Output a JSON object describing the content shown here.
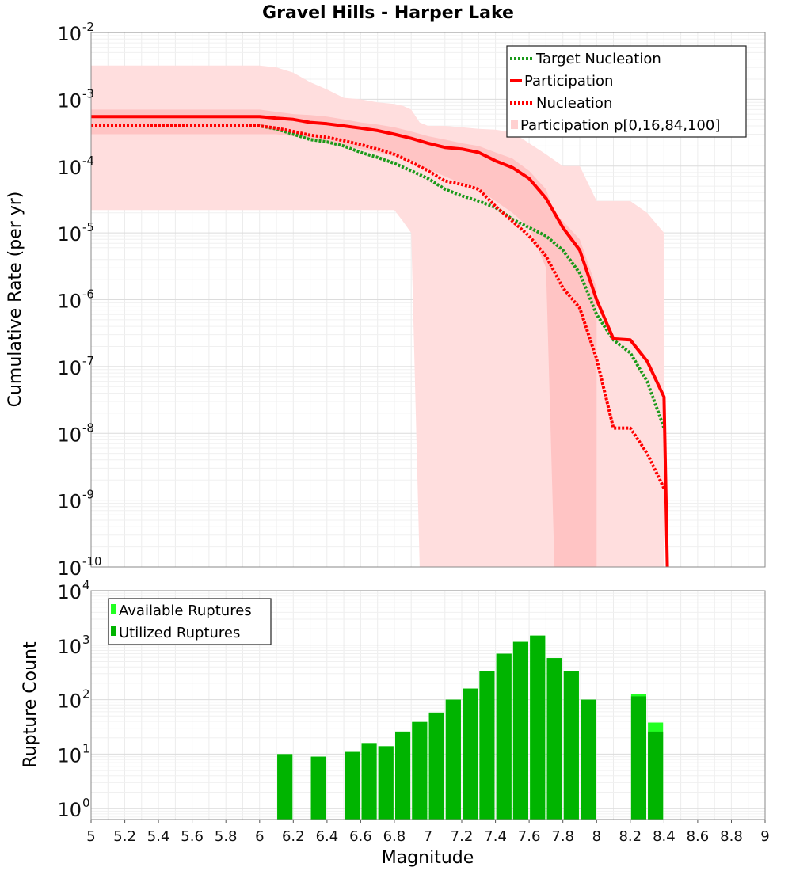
{
  "chart_data": [
    {
      "type": "line",
      "title": "Gravel Hills - Harper Lake",
      "xlabel": "",
      "ylabel": "Cumulative Rate (per yr)",
      "xlim": [
        5,
        9
      ],
      "ylim_log10": [
        -10,
        -2
      ],
      "ytick_exponents": [
        "-2",
        "-3",
        "-4",
        "-5",
        "-6",
        "-7",
        "-8",
        "-9",
        "-10"
      ],
      "ytick_base": "10",
      "legend": {
        "position": "top-right",
        "entries": [
          "Target Nucleation",
          "Participation",
          "Nucleation",
          "Participation p[0,16,84,100]"
        ]
      },
      "colors": {
        "target_nucleation": "#1a9a1a",
        "participation": "#ff0000",
        "nucleation": "#ff0000",
        "band_outer": "#ffdede",
        "band_inner": "#ffc4c4"
      },
      "series": [
        {
          "name": "Participation",
          "style": "solid",
          "x": [
            5.0,
            6.0,
            6.1,
            6.2,
            6.3,
            6.4,
            6.5,
            6.6,
            6.7,
            6.8,
            6.9,
            7.0,
            7.1,
            7.2,
            7.3,
            7.4,
            7.5,
            7.6,
            7.7,
            7.8,
            7.9,
            8.0,
            8.1,
            8.2,
            8.3,
            8.4,
            8.42
          ],
          "y": [
            0.00055,
            0.00055,
            0.00052,
            0.0005,
            0.00045,
            0.00043,
            0.0004,
            0.00037,
            0.00034,
            0.0003,
            0.00026,
            0.00022,
            0.00019,
            0.00018,
            0.00016,
            0.00012,
            9.5e-05,
            6.5e-05,
            3.3e-05,
            1.2e-05,
            5.5e-06,
            1e-06,
            2.6e-07,
            2.5e-07,
            1.2e-07,
            3.5e-08,
            1e-10
          ]
        },
        {
          "name": "Target Nucleation",
          "style": "dotted",
          "x": [
            5.0,
            6.0,
            6.1,
            6.2,
            6.3,
            6.4,
            6.5,
            6.6,
            6.7,
            6.8,
            6.9,
            7.0,
            7.1,
            7.2,
            7.3,
            7.4,
            7.5,
            7.6,
            7.7,
            7.8,
            7.9,
            8.0,
            8.1,
            8.2,
            8.3,
            8.4
          ],
          "y": [
            0.0004,
            0.0004,
            0.00036,
            0.0003,
            0.00025,
            0.00023,
            0.0002,
            0.00016,
            0.000135,
            0.00011,
            8.5e-05,
            6.5e-05,
            4.5e-05,
            3.6e-05,
            3e-05,
            2.4e-05,
            1.6e-05,
            1.2e-05,
            9e-06,
            5.5e-06,
            2.5e-06,
            6e-07,
            2.5e-07,
            1.6e-07,
            6e-08,
            1.2e-08
          ]
        },
        {
          "name": "Nucleation",
          "style": "dotted",
          "x": [
            5.0,
            6.0,
            6.1,
            6.2,
            6.3,
            6.4,
            6.5,
            6.6,
            6.7,
            6.8,
            6.9,
            7.0,
            7.1,
            7.2,
            7.3,
            7.4,
            7.5,
            7.6,
            7.7,
            7.8,
            7.9,
            8.0,
            8.1,
            8.2,
            8.3,
            8.4
          ],
          "y": [
            0.0004,
            0.0004,
            0.00037,
            0.00033,
            0.00029,
            0.00027,
            0.00024,
            0.00021,
            0.00018,
            0.00015,
            0.000115,
            8.5e-05,
            6e-05,
            5.3e-05,
            4.5e-05,
            2.5e-05,
            1.5e-05,
            9e-06,
            4.5e-06,
            1.5e-06,
            7.5e-07,
            1.3e-07,
            1.2e-08,
            1.2e-08,
            5e-09,
            1.5e-09
          ]
        }
      ],
      "bands": [
        {
          "name": "p0-p100",
          "x": [
            5.0,
            6.0,
            6.1,
            6.2,
            6.3,
            6.4,
            6.5,
            6.6,
            6.7,
            6.8,
            6.85,
            6.9,
            6.95,
            7.0,
            7.1,
            7.2,
            7.3,
            7.4,
            7.5,
            7.6,
            7.7,
            7.8,
            7.9,
            8.0,
            8.1,
            8.2,
            8.3,
            8.4
          ],
          "upper": [
            0.0032,
            0.0032,
            0.003,
            0.0025,
            0.0018,
            0.0014,
            0.00105,
            0.001,
            0.0009,
            0.00085,
            0.0008,
            0.0007,
            0.00045,
            0.0004,
            0.0004,
            0.00038,
            0.00036,
            0.00035,
            0.00032,
            0.00022,
            0.00015,
            0.0001,
            0.0001,
            3e-05,
            3e-05,
            3e-05,
            2e-05,
            1e-05
          ],
          "lower": [
            2.2e-05,
            2.2e-05,
            2.2e-05,
            2.2e-05,
            2.2e-05,
            2.2e-05,
            2.2e-05,
            2.2e-05,
            2.2e-05,
            2.2e-05,
            1.5e-05,
            1e-05,
            1e-10,
            1e-10,
            1e-10,
            1e-10,
            1e-10,
            1e-10,
            1e-10,
            1e-10,
            1e-10,
            1e-10,
            1e-10,
            1e-10,
            1e-10,
            1e-10,
            1e-10,
            1e-10
          ]
        },
        {
          "name": "p16-p84",
          "x": [
            5.0,
            6.0,
            6.1,
            6.2,
            6.3,
            6.4,
            6.5,
            6.6,
            6.7,
            6.8,
            6.9,
            7.0,
            7.1,
            7.2,
            7.3,
            7.4,
            7.5,
            7.6,
            7.7,
            7.75,
            7.8,
            7.9,
            8.0
          ],
          "upper": [
            0.0007,
            0.0007,
            0.00065,
            0.0006,
            0.00058,
            0.00055,
            0.0005,
            0.00045,
            0.00042,
            0.00038,
            0.00033,
            0.00028,
            0.00025,
            0.00022,
            0.0002,
            0.00016,
            0.00013,
            8.5e-05,
            4.5e-05,
            2e-05,
            1.5e-05,
            8e-06,
            1.5e-06
          ],
          "lower": [
            0.0003,
            0.0003,
            0.0003,
            0.00028,
            0.00025,
            0.00022,
            0.0002,
            0.00018,
            0.00016,
            0.00014,
            0.00012,
            9e-05,
            7e-05,
            5.5e-05,
            4.5e-05,
            3e-05,
            2e-05,
            1.2e-05,
            3e-06,
            1e-10,
            1e-10,
            1e-10,
            1e-10
          ]
        }
      ]
    },
    {
      "type": "bar",
      "xlabel": "Magnitude",
      "ylabel": "Rupture Count",
      "xlim": [
        5,
        9
      ],
      "xticks": [
        "5",
        "5.2",
        "5.4",
        "5.6",
        "5.8",
        "6",
        "6.2",
        "6.4",
        "6.6",
        "6.8",
        "7",
        "7.2",
        "7.4",
        "7.6",
        "7.8",
        "8",
        "8.2",
        "8.4",
        "8.6",
        "8.8",
        "9"
      ],
      "ylim_log10": [
        -0.2,
        4
      ],
      "ytick_exponents": [
        "4",
        "3",
        "2",
        "1",
        "0"
      ],
      "ytick_base": "10",
      "legend": {
        "position": "top-left",
        "entries": [
          "Available Ruptures",
          "Utilized Ruptures"
        ]
      },
      "colors": {
        "available": "#22ff22",
        "utilized": "#00b400"
      },
      "categories": [
        6.15,
        6.35,
        6.55,
        6.65,
        6.75,
        6.85,
        6.95,
        7.05,
        7.15,
        7.25,
        7.35,
        7.45,
        7.55,
        7.65,
        7.75,
        7.85,
        7.95,
        8.25,
        8.35
      ],
      "series": [
        {
          "name": "Available Ruptures",
          "values": [
            10,
            9,
            11,
            16,
            14,
            26,
            39,
            58,
            100,
            160,
            330,
            700,
            1150,
            1500,
            580,
            340,
            100,
            125,
            38
          ]
        },
        {
          "name": "Utilized Ruptures",
          "values": [
            10,
            9,
            11,
            16,
            14,
            26,
            39,
            58,
            100,
            160,
            330,
            700,
            1150,
            1500,
            580,
            340,
            100,
            115,
            26
          ]
        }
      ]
    }
  ]
}
